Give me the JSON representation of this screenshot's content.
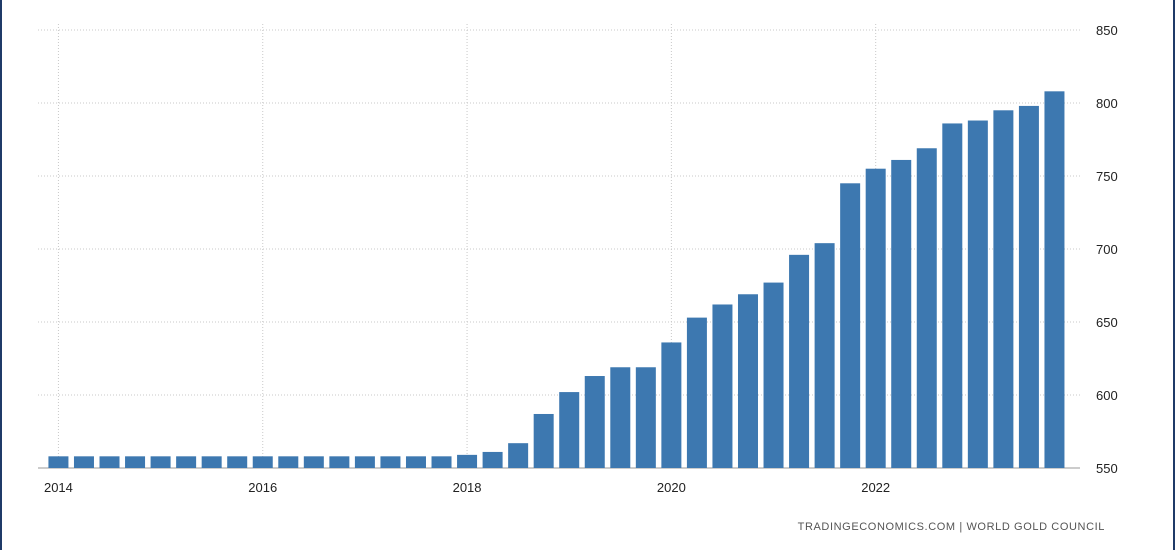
{
  "chart_data": {
    "type": "bar",
    "title": "",
    "xlabel": "",
    "ylabel": "",
    "xlim": [
      2013.8,
      2024.0
    ],
    "ylim": [
      550,
      850
    ],
    "x_ticks": [
      2014,
      2016,
      2018,
      2020,
      2022
    ],
    "y_ticks": [
      550,
      600,
      650,
      700,
      750,
      800,
      850
    ],
    "y_axis_position": "right",
    "grid": true,
    "legend": "none",
    "bar_color": "#3d78b0",
    "x": [
      2014.0,
      2014.25,
      2014.5,
      2014.75,
      2015.0,
      2015.25,
      2015.5,
      2015.75,
      2016.0,
      2016.25,
      2016.5,
      2016.75,
      2017.0,
      2017.25,
      2017.5,
      2017.75,
      2018.0,
      2018.25,
      2018.5,
      2018.75,
      2019.0,
      2019.25,
      2019.5,
      2019.75,
      2020.0,
      2020.25,
      2020.5,
      2020.75,
      2021.0,
      2021.25,
      2021.5,
      2021.75,
      2022.0,
      2022.25,
      2022.5,
      2022.75,
      2023.0,
      2023.25,
      2023.5,
      2023.75
    ],
    "values": [
      558,
      558,
      558,
      558,
      558,
      558,
      558,
      558,
      558,
      558,
      558,
      558,
      558,
      558,
      558,
      558,
      559,
      561,
      567,
      587,
      602,
      613,
      619,
      619,
      636,
      653,
      662,
      669,
      677,
      696,
      704,
      745,
      755,
      761,
      769,
      786,
      788,
      795,
      798,
      808
    ]
  },
  "source_text": "TRADINGECONOMICS.COM  |  WORLD GOLD COUNCIL"
}
